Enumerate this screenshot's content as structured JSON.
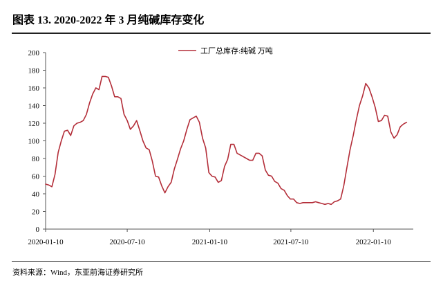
{
  "source_note": "资料来源：Wind，东亚前海证券研究所",
  "chart_data": {
    "type": "line",
    "title": "图表 13. 2020-2022 年 3 月纯碱库存变化",
    "xlabel": "",
    "ylabel": "",
    "ylim": [
      0,
      200
    ],
    "yticks": [
      0,
      20,
      40,
      60,
      80,
      100,
      120,
      140,
      160,
      180,
      200
    ],
    "xlim": [
      "2020-01-10",
      "2022-04-09"
    ],
    "xticks": [
      "2020-01-10",
      "2020-07-10",
      "2021-01-10",
      "2021-07-10",
      "2022-01-10"
    ],
    "grid": false,
    "legend": "top-center",
    "x": [
      "2020-01-10",
      "2020-01-17",
      "2020-01-24",
      "2020-01-31",
      "2020-02-07",
      "2020-02-14",
      "2020-02-21",
      "2020-02-28",
      "2020-03-06",
      "2020-03-13",
      "2020-03-20",
      "2020-03-27",
      "2020-04-03",
      "2020-04-10",
      "2020-04-17",
      "2020-04-24",
      "2020-05-01",
      "2020-05-08",
      "2020-05-15",
      "2020-05-22",
      "2020-05-29",
      "2020-06-05",
      "2020-06-12",
      "2020-06-19",
      "2020-06-26",
      "2020-07-03",
      "2020-07-10",
      "2020-07-17",
      "2020-07-24",
      "2020-07-31",
      "2020-08-07",
      "2020-08-14",
      "2020-08-21",
      "2020-08-28",
      "2020-09-04",
      "2020-09-11",
      "2020-09-18",
      "2020-09-25",
      "2020-10-02",
      "2020-10-09",
      "2020-10-16",
      "2020-10-23",
      "2020-10-30",
      "2020-11-06",
      "2020-11-13",
      "2020-11-20",
      "2020-11-27",
      "2020-12-04",
      "2020-12-11",
      "2020-12-18",
      "2020-12-25",
      "2021-01-01",
      "2021-01-08",
      "2021-01-15",
      "2021-01-22",
      "2021-01-29",
      "2021-02-05",
      "2021-02-12",
      "2021-02-19",
      "2021-02-26",
      "2021-03-05",
      "2021-03-12",
      "2021-03-19",
      "2021-03-26",
      "2021-04-02",
      "2021-04-09",
      "2021-04-16",
      "2021-04-23",
      "2021-04-30",
      "2021-05-07",
      "2021-05-14",
      "2021-05-21",
      "2021-05-28",
      "2021-06-04",
      "2021-06-11",
      "2021-06-18",
      "2021-06-25",
      "2021-07-02",
      "2021-07-09",
      "2021-07-16",
      "2021-07-23",
      "2021-07-30",
      "2021-08-06",
      "2021-08-13",
      "2021-08-20",
      "2021-08-27",
      "2021-09-03",
      "2021-09-10",
      "2021-09-17",
      "2021-09-24",
      "2021-10-01",
      "2021-10-08",
      "2021-10-15",
      "2021-10-22",
      "2021-10-29",
      "2021-11-05",
      "2021-11-12",
      "2021-11-19",
      "2021-11-26",
      "2021-12-03",
      "2021-12-10",
      "2021-12-17",
      "2021-12-24",
      "2021-12-31",
      "2022-01-07",
      "2022-01-14",
      "2022-01-21",
      "2022-01-28",
      "2022-02-04",
      "2022-02-11",
      "2022-02-18",
      "2022-02-25",
      "2022-03-04",
      "2022-03-11",
      "2022-03-18",
      "2022-03-25"
    ],
    "series": [
      {
        "name": "工厂总库存:纯碱 万吨",
        "color": "#b32d38",
        "values": [
          51,
          50,
          48,
          62,
          87,
          100,
          111,
          112,
          106,
          117,
          120,
          121,
          123,
          130,
          143,
          153,
          160,
          158,
          173,
          173,
          172,
          162,
          150,
          150,
          148,
          130,
          123,
          113,
          117,
          123,
          112,
          100,
          92,
          90,
          77,
          60,
          59,
          49,
          41,
          48,
          53,
          68,
          79,
          91,
          100,
          113,
          124,
          126,
          128,
          121,
          103,
          92,
          64,
          60,
          59,
          53,
          55,
          71,
          79,
          96,
          96,
          86,
          84,
          82,
          80,
          78,
          78,
          86,
          86,
          83,
          67,
          61,
          60,
          54,
          52,
          46,
          44,
          38,
          34,
          34,
          30,
          29,
          30,
          30,
          30,
          30,
          31,
          30,
          29,
          28,
          29,
          28,
          31,
          32,
          34,
          49,
          70,
          90,
          106,
          124,
          140,
          151,
          165,
          160,
          150,
          138,
          122,
          123,
          129,
          128,
          110,
          103,
          107,
          116,
          119,
          121
        ]
      }
    ]
  }
}
